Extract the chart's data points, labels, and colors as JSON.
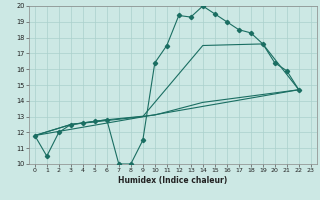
{
  "xlabel": "Humidex (Indice chaleur)",
  "xlim": [
    -0.5,
    23.5
  ],
  "ylim": [
    10,
    20
  ],
  "xticks": [
    0,
    1,
    2,
    3,
    4,
    5,
    6,
    7,
    8,
    9,
    10,
    11,
    12,
    13,
    14,
    15,
    16,
    17,
    18,
    19,
    20,
    21,
    22,
    23
  ],
  "yticks": [
    10,
    11,
    12,
    13,
    14,
    15,
    16,
    17,
    18,
    19,
    20
  ],
  "bg_color": "#cce8e4",
  "grid_color": "#aad0cc",
  "line_color": "#1a6e62",
  "main_line": [
    [
      0,
      11.8
    ],
    [
      1,
      10.5
    ],
    [
      2,
      12.0
    ],
    [
      3,
      12.5
    ],
    [
      4,
      12.6
    ],
    [
      5,
      12.7
    ],
    [
      6,
      12.8
    ],
    [
      7,
      10.0
    ],
    [
      8,
      10.0
    ],
    [
      9,
      11.5
    ],
    [
      10,
      16.4
    ],
    [
      11,
      17.5
    ],
    [
      12,
      19.4
    ],
    [
      13,
      19.3
    ],
    [
      14,
      20.0
    ],
    [
      15,
      19.5
    ],
    [
      16,
      19.0
    ],
    [
      17,
      18.5
    ],
    [
      18,
      18.3
    ],
    [
      19,
      17.6
    ],
    [
      20,
      16.4
    ],
    [
      21,
      15.9
    ],
    [
      22,
      14.7
    ]
  ],
  "line_upper": [
    [
      0,
      11.8
    ],
    [
      3,
      12.5
    ],
    [
      9,
      13.0
    ],
    [
      14,
      17.5
    ],
    [
      19,
      17.6
    ],
    [
      22,
      14.7
    ]
  ],
  "line_lower_straight": [
    [
      0,
      11.8
    ],
    [
      22,
      14.7
    ]
  ],
  "line_lower_curve": [
    [
      0,
      11.8
    ],
    [
      3,
      12.5
    ],
    [
      6,
      12.8
    ],
    [
      10,
      13.1
    ],
    [
      14,
      13.9
    ],
    [
      19,
      14.4
    ],
    [
      22,
      14.7
    ]
  ]
}
